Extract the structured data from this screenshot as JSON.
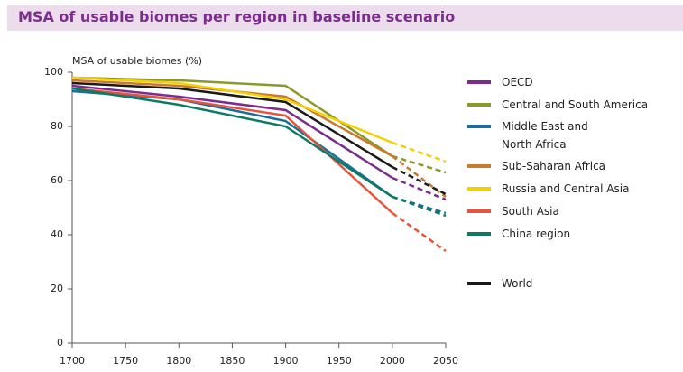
{
  "chart_data": {
    "type": "line",
    "title": "MSA of usable biomes per region in baseline scenario",
    "y_label": "MSA of usable biomes (%)",
    "x": [
      1700,
      1800,
      1900,
      2000,
      2050
    ],
    "xlim": [
      1700,
      2050
    ],
    "xticks": [
      1700,
      1750,
      1800,
      1850,
      1900,
      1950,
      2000,
      2050
    ],
    "ylim": [
      0,
      100
    ],
    "yticks": [
      0,
      20,
      40,
      60,
      80,
      100
    ],
    "series": [
      {
        "name": "OECD",
        "color": "#7b2d8e",
        "values": [
          95,
          91,
          86,
          61,
          53
        ]
      },
      {
        "name": "Central and South America",
        "color": "#8a9a2a",
        "values": [
          98,
          97,
          95,
          69,
          63
        ]
      },
      {
        "name": "Middle East and\nNorth Africa",
        "color": "#1a6e9e",
        "values": [
          93,
          90,
          82,
          54,
          48
        ]
      },
      {
        "name": "Sub-Saharan Africa",
        "color": "#c87a2e",
        "values": [
          97,
          95,
          91,
          69,
          54
        ]
      },
      {
        "name": "Russia and Central Asia",
        "color": "#f5d000",
        "values": [
          98,
          96,
          90,
          74,
          67
        ]
      },
      {
        "name": "South Asia",
        "color": "#e8543a",
        "values": [
          94,
          90,
          84,
          48,
          34
        ]
      },
      {
        "name": "China region",
        "color": "#0f7a62",
        "values": [
          94,
          88,
          80,
          54,
          47
        ]
      },
      {
        "name": "World",
        "color": "#1a1a1a",
        "values": [
          96,
          94,
          89,
          65,
          55
        ]
      }
    ]
  }
}
